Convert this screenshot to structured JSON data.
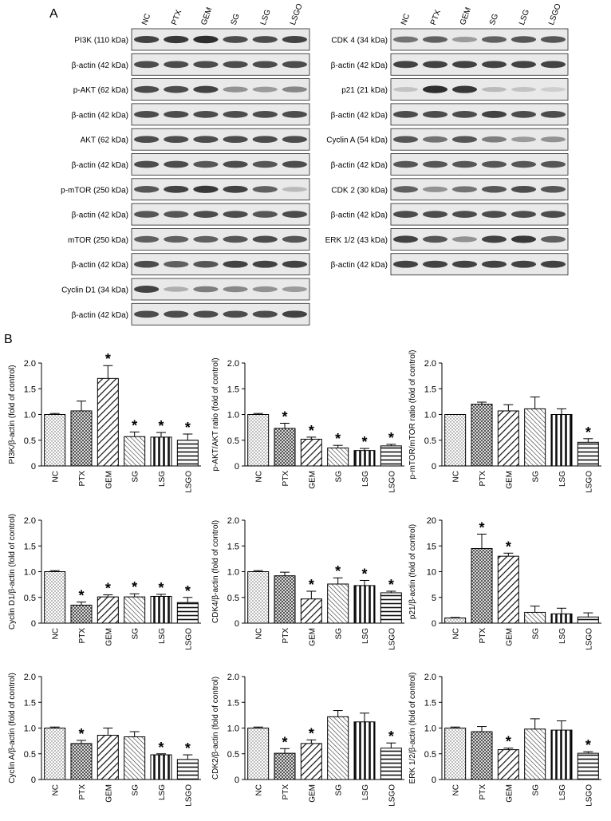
{
  "panel_a_label": "A",
  "panel_b_label": "B",
  "lanes": [
    "NC",
    "PTX",
    "GEM",
    "SG",
    "LSG",
    "LSGO"
  ],
  "blot_columns": [
    {
      "rows": [
        {
          "label": "PI3K (110 kDa)",
          "bands": [
            0.85,
            0.9,
            0.95,
            0.8,
            0.8,
            0.85
          ]
        },
        {
          "label": "β-actin (42 kDa)",
          "bands": [
            0.8,
            0.8,
            0.8,
            0.8,
            0.8,
            0.8
          ]
        },
        {
          "label": "p-AKT (62 kDa)",
          "bands": [
            0.8,
            0.8,
            0.85,
            0.45,
            0.4,
            0.5
          ]
        },
        {
          "label": "β-actin (42 kDa)",
          "bands": [
            0.8,
            0.8,
            0.8,
            0.8,
            0.8,
            0.8
          ]
        },
        {
          "label": "AKT (62 kDa)",
          "bands": [
            0.8,
            0.8,
            0.8,
            0.8,
            0.8,
            0.8
          ]
        },
        {
          "label": "β-actin (42 kDa)",
          "bands": [
            0.8,
            0.8,
            0.75,
            0.8,
            0.75,
            0.8
          ]
        },
        {
          "label": "p-mTOR (250 kDa)",
          "bands": [
            0.75,
            0.85,
            0.9,
            0.85,
            0.7,
            0.25
          ]
        },
        {
          "label": "β-actin (42 kDa)",
          "bands": [
            0.75,
            0.75,
            0.8,
            0.8,
            0.75,
            0.8
          ]
        },
        {
          "label": "mTOR (250 kDa)",
          "bands": [
            0.7,
            0.7,
            0.7,
            0.75,
            0.8,
            0.75
          ]
        },
        {
          "label": "β-actin (42 kDa)",
          "bands": [
            0.8,
            0.7,
            0.75,
            0.85,
            0.85,
            0.85
          ]
        },
        {
          "label": "Cyclin D1 (34 kDa)",
          "bands": [
            0.85,
            0.3,
            0.55,
            0.5,
            0.45,
            0.4
          ]
        },
        {
          "label": "β-actin (42 kDa)",
          "bands": [
            0.8,
            0.8,
            0.8,
            0.8,
            0.8,
            0.85
          ]
        }
      ]
    },
    {
      "rows": [
        {
          "label": "CDK 4 (34 kDa)",
          "bands": [
            0.6,
            0.7,
            0.4,
            0.7,
            0.75,
            0.75
          ]
        },
        {
          "label": "β-actin (42 kDa)",
          "bands": [
            0.85,
            0.85,
            0.85,
            0.85,
            0.85,
            0.85
          ]
        },
        {
          "label": "p21 (21 kDa)",
          "bands": [
            0.2,
            0.95,
            0.9,
            0.25,
            0.2,
            0.15
          ]
        },
        {
          "label": "β-actin (42 kDa)",
          "bands": [
            0.8,
            0.8,
            0.8,
            0.85,
            0.8,
            0.8
          ]
        },
        {
          "label": "Cyclin A (54 kDa)",
          "bands": [
            0.75,
            0.6,
            0.75,
            0.55,
            0.4,
            0.45
          ]
        },
        {
          "label": "β-actin (42 kDa)",
          "bands": [
            0.75,
            0.75,
            0.75,
            0.75,
            0.75,
            0.75
          ]
        },
        {
          "label": "CDK 2 (30 kDa)",
          "bands": [
            0.7,
            0.45,
            0.6,
            0.75,
            0.8,
            0.75
          ]
        },
        {
          "label": "β-actin (42 kDa)",
          "bands": [
            0.8,
            0.8,
            0.8,
            0.8,
            0.8,
            0.8
          ]
        },
        {
          "label": "ERK 1/2 (43 kDa)",
          "bands": [
            0.85,
            0.75,
            0.45,
            0.85,
            0.9,
            0.7
          ]
        },
        {
          "label": "β-actin (42 kDa)",
          "bands": [
            0.85,
            0.85,
            0.85,
            0.85,
            0.85,
            0.85
          ]
        }
      ]
    }
  ],
  "chart_data": [
    {
      "type": "bar",
      "ylabel": "PI3K/β-actin (fold of control)",
      "categories": [
        "NC",
        "PTX",
        "GEM",
        "SG",
        "LSG",
        "LSGO"
      ],
      "values": [
        1.0,
        1.07,
        1.7,
        0.57,
        0.56,
        0.5
      ],
      "errors": [
        0.02,
        0.19,
        0.25,
        0.09,
        0.09,
        0.12
      ],
      "significant": [
        false,
        false,
        true,
        true,
        true,
        true
      ],
      "ylim": [
        0,
        2.0
      ],
      "yticks": [
        0,
        0.5,
        1.0,
        1.5,
        2.0
      ],
      "ytick_labels": [
        "0",
        "0.5",
        "1.0",
        "1.5",
        "2.0"
      ]
    },
    {
      "type": "bar",
      "ylabel": "p-AKT/AKT ratio (fold of control)",
      "categories": [
        "NC",
        "PTX",
        "GEM",
        "SG",
        "LSG",
        "LSGO"
      ],
      "values": [
        1.0,
        0.73,
        0.52,
        0.35,
        0.3,
        0.39
      ],
      "errors": [
        0.02,
        0.1,
        0.04,
        0.05,
        0.04,
        0.03
      ],
      "significant": [
        false,
        true,
        true,
        true,
        true,
        true
      ],
      "ylim": [
        0,
        2.0
      ],
      "yticks": [
        0,
        0.5,
        1.0,
        1.5,
        2.0
      ],
      "ytick_labels": [
        "0",
        "0.5",
        "1.0",
        "1.5",
        "2.0"
      ]
    },
    {
      "type": "bar",
      "ylabel": "p-mTOR/mTOR ratio (fold of control)",
      "categories": [
        "NC",
        "PTX",
        "GEM",
        "SG",
        "LSG",
        "LSGO"
      ],
      "values": [
        1.0,
        1.2,
        1.07,
        1.11,
        1.0,
        0.46
      ],
      "errors": [
        0.0,
        0.04,
        0.12,
        0.23,
        0.11,
        0.07
      ],
      "significant": [
        false,
        false,
        false,
        false,
        false,
        true
      ],
      "ylim": [
        0,
        2.0
      ],
      "yticks": [
        0,
        0.5,
        1.0,
        1.5,
        2.0
      ],
      "ytick_labels": [
        "0",
        "0.5",
        "1.0",
        "1.5",
        "2.0"
      ]
    },
    {
      "type": "bar",
      "ylabel": "Cyclin D1/β-actin (fold of control)",
      "categories": [
        "NC",
        "PTX",
        "GEM",
        "SG",
        "LSG",
        "LSGO"
      ],
      "values": [
        1.0,
        0.35,
        0.51,
        0.51,
        0.52,
        0.4
      ],
      "errors": [
        0.02,
        0.06,
        0.04,
        0.06,
        0.04,
        0.1
      ],
      "significant": [
        false,
        true,
        true,
        true,
        true,
        true
      ],
      "ylim": [
        0,
        2.0
      ],
      "yticks": [
        0,
        0.5,
        1.0,
        1.5,
        2.0
      ],
      "ytick_labels": [
        "0",
        "0.5",
        "1.0",
        "1.5",
        "2.0"
      ]
    },
    {
      "type": "bar",
      "ylabel": "CDK4/β-actin (fold of control)",
      "categories": [
        "NC",
        "PTX",
        "GEM",
        "SG",
        "LSG",
        "LSGO"
      ],
      "values": [
        1.0,
        0.92,
        0.47,
        0.76,
        0.73,
        0.59
      ],
      "errors": [
        0.02,
        0.07,
        0.15,
        0.12,
        0.1,
        0.03
      ],
      "significant": [
        false,
        false,
        true,
        true,
        true,
        true
      ],
      "ylim": [
        0,
        2.0
      ],
      "yticks": [
        0,
        0.5,
        1.0,
        1.5,
        2.0
      ],
      "ytick_labels": [
        "0",
        "0.5",
        "1.0",
        "1.5",
        "2.0"
      ]
    },
    {
      "type": "bar",
      "ylabel": "p21/β-actin (fold of control)",
      "categories": [
        "NC",
        "PTX",
        "GEM",
        "SG",
        "LSG",
        "LSGO"
      ],
      "values": [
        1.0,
        14.5,
        13.0,
        2.1,
        1.8,
        1.2
      ],
      "errors": [
        0.1,
        2.8,
        0.6,
        1.2,
        1.1,
        0.8
      ],
      "significant": [
        false,
        true,
        true,
        false,
        false,
        false
      ],
      "ylim": [
        0,
        20
      ],
      "yticks": [
        0,
        5,
        10,
        15,
        20
      ],
      "ytick_labels": [
        "0",
        "5",
        "10",
        "15",
        "20"
      ]
    },
    {
      "type": "bar",
      "ylabel": "Cyclin A/β-actin (fold of control)",
      "categories": [
        "NC",
        "PTX",
        "GEM",
        "SG",
        "LSG",
        "LSGO"
      ],
      "values": [
        1.0,
        0.7,
        0.86,
        0.83,
        0.48,
        0.39
      ],
      "errors": [
        0.02,
        0.06,
        0.14,
        0.1,
        0.02,
        0.09
      ],
      "significant": [
        false,
        true,
        false,
        false,
        true,
        true
      ],
      "ylim": [
        0,
        2.0
      ],
      "yticks": [
        0,
        0.5,
        1.0,
        1.5,
        2.0
      ],
      "ytick_labels": [
        "0",
        "0.5",
        "1.0",
        "1.5",
        "2.0"
      ]
    },
    {
      "type": "bar",
      "ylabel": "CDK2/β-actin (fold of control)",
      "categories": [
        "NC",
        "PTX",
        "GEM",
        "SG",
        "LSG",
        "LSGO"
      ],
      "values": [
        1.0,
        0.51,
        0.7,
        1.22,
        1.12,
        0.61
      ],
      "errors": [
        0.02,
        0.09,
        0.07,
        0.12,
        0.17,
        0.1
      ],
      "significant": [
        false,
        true,
        true,
        false,
        false,
        true
      ],
      "ylim": [
        0,
        2.0
      ],
      "yticks": [
        0,
        0.5,
        1.0,
        1.5,
        2.0
      ],
      "ytick_labels": [
        "0",
        "0.5",
        "1.0",
        "1.5",
        "2.0"
      ]
    },
    {
      "type": "bar",
      "ylabel": "ERK 1/2/β-actin (fold of control)",
      "categories": [
        "NC",
        "PTX",
        "GEM",
        "SG",
        "LSG",
        "LSGO"
      ],
      "values": [
        1.0,
        0.93,
        0.58,
        0.98,
        0.96,
        0.51
      ],
      "errors": [
        0.02,
        0.1,
        0.03,
        0.2,
        0.18,
        0.03
      ],
      "significant": [
        false,
        false,
        true,
        false,
        false,
        true
      ],
      "ylim": [
        0,
        2.0
      ],
      "yticks": [
        0,
        0.5,
        1.0,
        1.5,
        2.0
      ],
      "ytick_labels": [
        "0",
        "0.5",
        "1.0",
        "1.5",
        "2.0"
      ]
    }
  ]
}
